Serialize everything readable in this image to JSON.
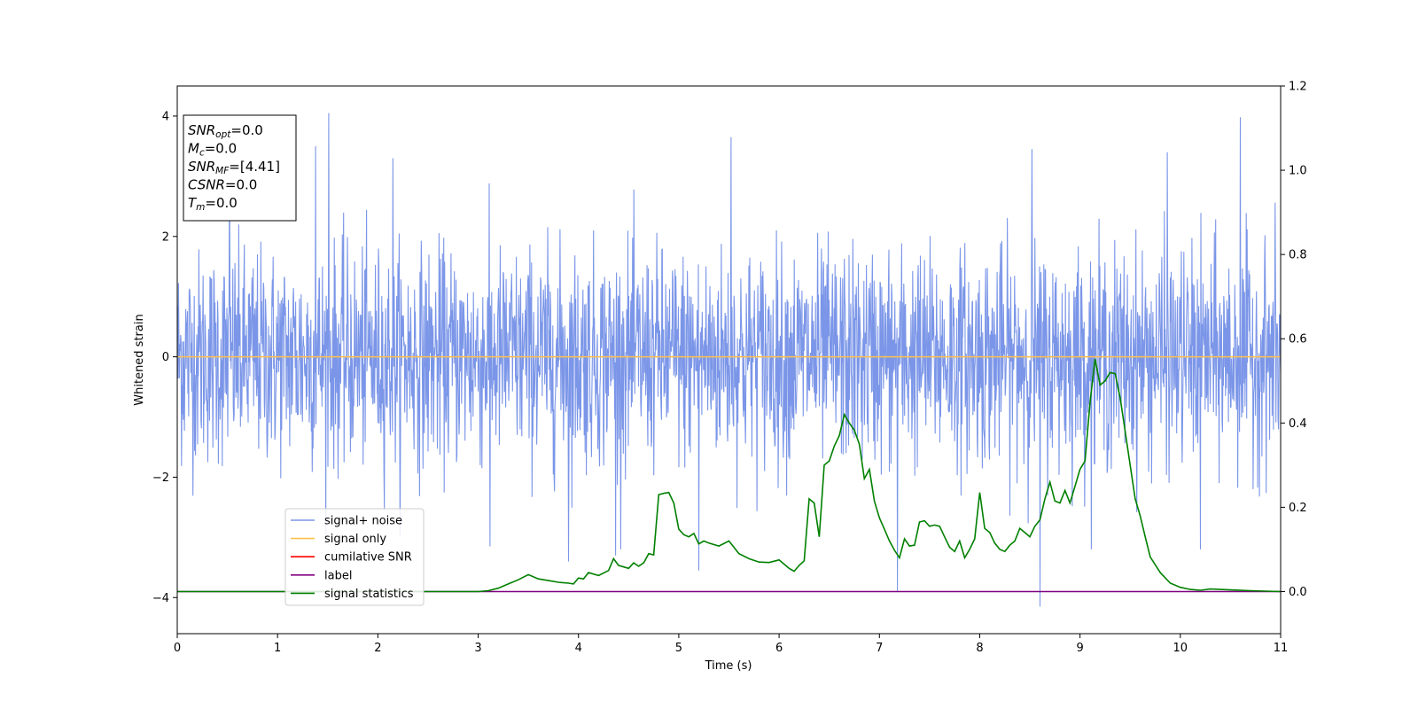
{
  "chart_data": {
    "type": "line",
    "title": "",
    "xlabel": "Time (s)",
    "ylabel": "Whitened strain",
    "y2label": "",
    "xlim": [
      0,
      11
    ],
    "ylim": [
      -4.6,
      4.5
    ],
    "y2lim": [
      -0.1,
      1.2
    ],
    "x_ticks": [
      0,
      1,
      2,
      3,
      4,
      5,
      6,
      7,
      8,
      9,
      10,
      11
    ],
    "y_ticks": [
      -4,
      -2,
      0,
      2,
      4
    ],
    "y2_ticks": [
      0.0,
      0.2,
      0.4,
      0.6,
      0.8,
      1.0,
      1.2
    ],
    "x_tick_labels": [
      "0",
      "1",
      "2",
      "3",
      "4",
      "5",
      "6",
      "7",
      "8",
      "9",
      "10",
      "11"
    ],
    "y_tick_labels": [
      "−4",
      "−2",
      "0",
      "2",
      "4"
    ],
    "y2_tick_labels": [
      "0.0",
      "0.2",
      "0.4",
      "0.6",
      "0.8",
      "1.0",
      "1.2"
    ],
    "grid": false,
    "legend_position": "lower-left",
    "info_box": [
      {
        "main": "SNR",
        "sub": "opt",
        "value": "=0.0"
      },
      {
        "main": "M",
        "sub": "c",
        "value": "=0.0"
      },
      {
        "main": "SNR",
        "sub": "MF",
        "value": "=[4.41]"
      },
      {
        "main": "CSNR",
        "sub": "",
        "value": "=0.0"
      },
      {
        "main": "T",
        "sub": "m",
        "value": "=0.0"
      }
    ],
    "series": [
      {
        "name": "signal+ noise",
        "color": "#7b96e8",
        "axis": "left",
        "style": "white gaussian noise, std ~0.9, peaks near ±4",
        "peaks": [
          [
            1.51,
            4.05
          ],
          [
            1.38,
            3.5
          ],
          [
            5.52,
            3.65
          ],
          [
            8.6,
            -4.15
          ],
          [
            9.87,
            3.4
          ],
          [
            10.6,
            3.98
          ],
          [
            3.12,
            -3.15
          ],
          [
            3.9,
            -3.4
          ],
          [
            4.37,
            -3.3
          ],
          [
            5.2,
            -3.55
          ],
          [
            7.18,
            -3.9
          ],
          [
            8.52,
            3.45
          ],
          [
            10.2,
            -3.2
          ],
          [
            0.52,
            3.32
          ],
          [
            2.15,
            3.3
          ]
        ]
      },
      {
        "name": "signal only",
        "color": "#ffbf4d",
        "axis": "left",
        "x": [
          0,
          11
        ],
        "y": [
          0,
          0
        ]
      },
      {
        "name": "cumilative SNR",
        "color": "#ff0000",
        "axis": "right",
        "x": [],
        "y": []
      },
      {
        "name": "label",
        "color": "#800080",
        "axis": "right",
        "x": [
          0,
          11
        ],
        "y": [
          0,
          0
        ]
      },
      {
        "name": "signal statistics",
        "color": "#008000",
        "axis": "right",
        "x": [
          0,
          0.5,
          1.0,
          1.5,
          2.0,
          2.5,
          3.0,
          3.1,
          3.2,
          3.3,
          3.4,
          3.5,
          3.6,
          3.7,
          3.8,
          3.9,
          3.95,
          4.0,
          4.05,
          4.1,
          4.2,
          4.3,
          4.35,
          4.4,
          4.5,
          4.55,
          4.6,
          4.65,
          4.7,
          4.75,
          4.8,
          4.85,
          4.9,
          4.95,
          5.0,
          5.05,
          5.1,
          5.15,
          5.2,
          5.25,
          5.3,
          5.4,
          5.5,
          5.6,
          5.7,
          5.8,
          5.9,
          6.0,
          6.1,
          6.15,
          6.2,
          6.25,
          6.3,
          6.35,
          6.4,
          6.45,
          6.5,
          6.55,
          6.6,
          6.65,
          6.7,
          6.75,
          6.8,
          6.85,
          6.9,
          6.95,
          7.0,
          7.05,
          7.1,
          7.15,
          7.2,
          7.25,
          7.3,
          7.35,
          7.4,
          7.45,
          7.5,
          7.55,
          7.6,
          7.65,
          7.7,
          7.75,
          7.8,
          7.85,
          7.9,
          7.95,
          8.0,
          8.05,
          8.1,
          8.15,
          8.2,
          8.25,
          8.3,
          8.35,
          8.4,
          8.45,
          8.5,
          8.55,
          8.6,
          8.65,
          8.7,
          8.75,
          8.8,
          8.85,
          8.9,
          8.95,
          9.0,
          9.05,
          9.1,
          9.15,
          9.2,
          9.25,
          9.3,
          9.35,
          9.4,
          9.45,
          9.5,
          9.55,
          9.6,
          9.65,
          9.7,
          9.8,
          9.9,
          10.0,
          10.1,
          10.2,
          10.3,
          10.5,
          10.7,
          11.0
        ],
        "y": [
          0.0,
          0.0,
          0.0,
          0.0,
          0.0,
          0.0,
          0.0,
          0.002,
          0.008,
          0.018,
          0.028,
          0.04,
          0.03,
          0.026,
          0.022,
          0.02,
          0.018,
          0.032,
          0.03,
          0.045,
          0.038,
          0.05,
          0.078,
          0.062,
          0.055,
          0.068,
          0.06,
          0.068,
          0.09,
          0.087,
          0.23,
          0.233,
          0.235,
          0.21,
          0.148,
          0.135,
          0.13,
          0.138,
          0.113,
          0.12,
          0.115,
          0.108,
          0.12,
          0.09,
          0.078,
          0.07,
          0.069,
          0.075,
          0.055,
          0.048,
          0.062,
          0.073,
          0.22,
          0.21,
          0.13,
          0.3,
          0.31,
          0.345,
          0.37,
          0.42,
          0.4,
          0.383,
          0.35,
          0.268,
          0.29,
          0.215,
          0.175,
          0.148,
          0.12,
          0.098,
          0.08,
          0.125,
          0.108,
          0.11,
          0.165,
          0.168,
          0.155,
          0.158,
          0.155,
          0.13,
          0.105,
          0.095,
          0.12,
          0.08,
          0.1,
          0.125,
          0.235,
          0.15,
          0.14,
          0.115,
          0.1,
          0.095,
          0.11,
          0.12,
          0.15,
          0.14,
          0.13,
          0.155,
          0.17,
          0.22,
          0.26,
          0.215,
          0.21,
          0.24,
          0.21,
          0.25,
          0.29,
          0.31,
          0.45,
          0.552,
          0.49,
          0.5,
          0.52,
          0.517,
          0.46,
          0.38,
          0.3,
          0.22,
          0.18,
          0.13,
          0.082,
          0.045,
          0.02,
          0.01,
          0.005,
          0.003,
          0.006,
          0.004,
          0.002,
          0.0
        ]
      }
    ]
  }
}
